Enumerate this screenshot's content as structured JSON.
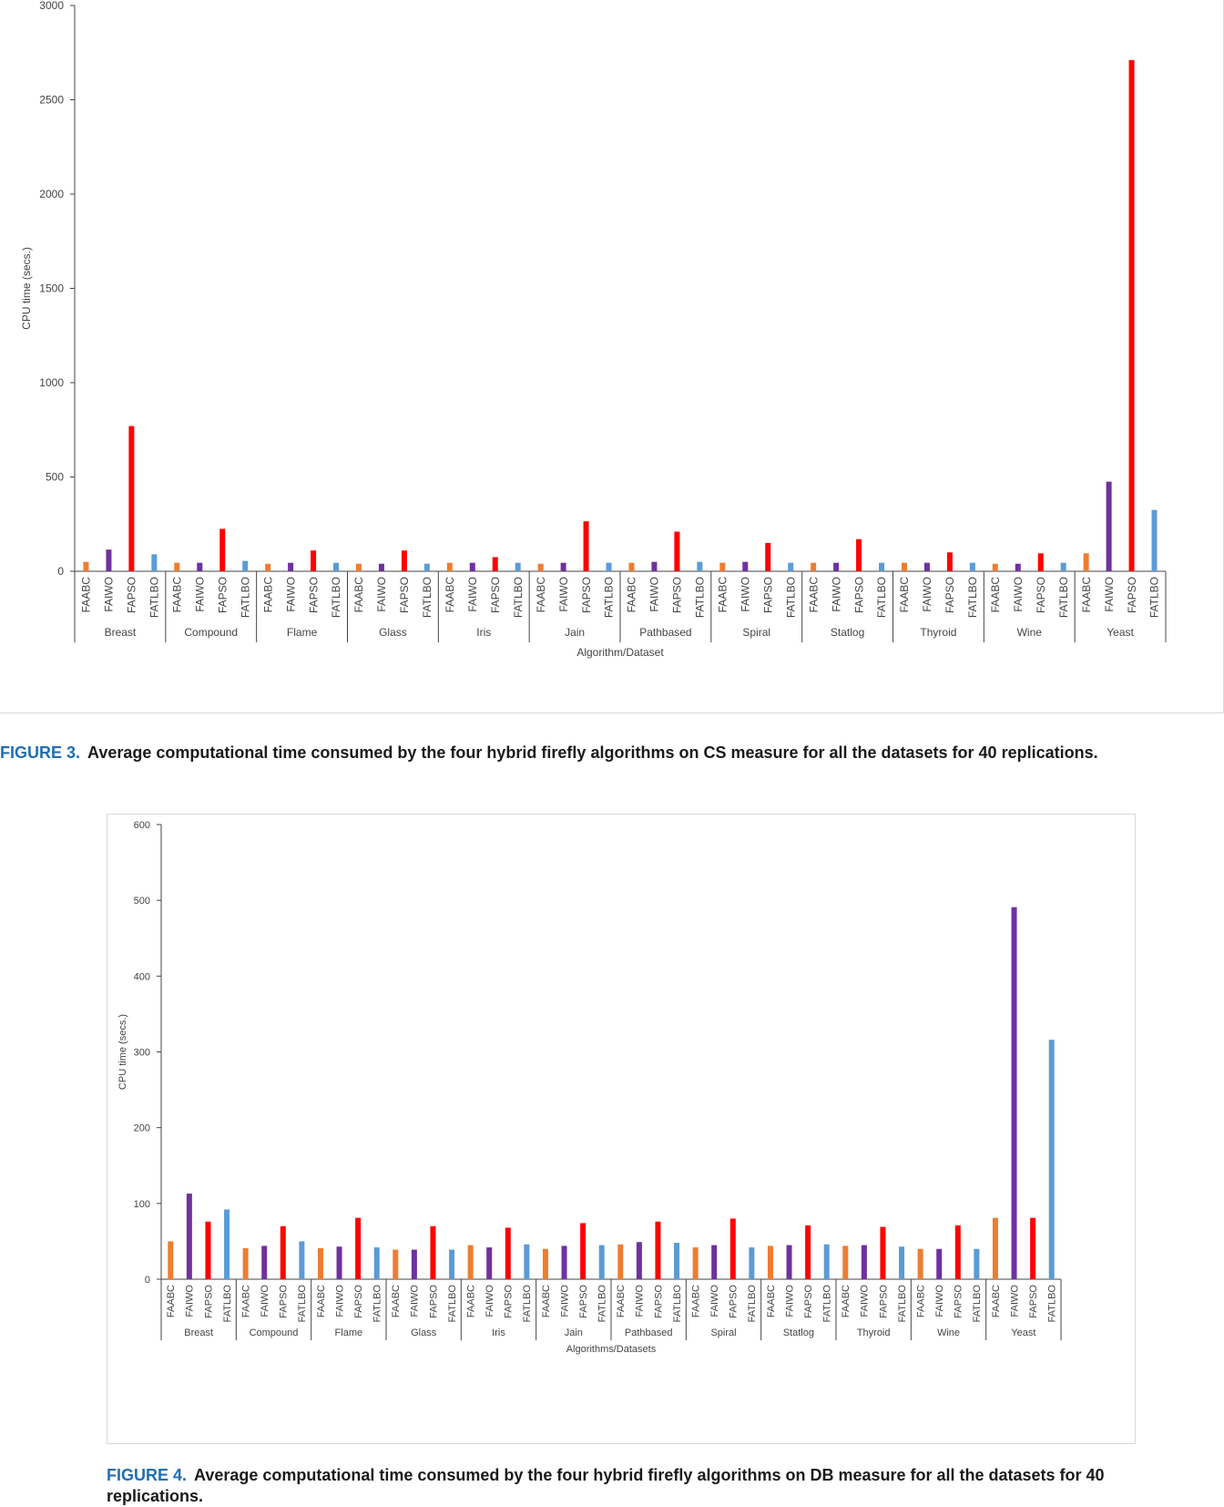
{
  "figures": [
    {
      "caption_label": "FIGURE 3.",
      "caption_text": "Average computational time consumed by the four hybrid firefly algorithms on CS measure for all the datasets for 40 replications."
    },
    {
      "caption_label": "FIGURE 4.",
      "caption_text": "Average computational time consumed by the four hybrid firefly algorithms on DB measure for all the datasets for 40 replications."
    }
  ],
  "colors": {
    "FAABC": "#ed7d31",
    "FAIWO": "#7030a0",
    "FAPSO": "#ff0000",
    "FATLBO": "#5b9bd5",
    "axis": "#444444",
    "caption_label": "#1f6fb4"
  },
  "chart_data": [
    {
      "type": "bar",
      "ylabel": "CPU time (secs.)",
      "xlabel": "Algorithm/Dataset",
      "ylim": [
        0,
        3000
      ],
      "yticks": [
        0,
        500,
        1000,
        1500,
        2000,
        2500,
        3000
      ],
      "grid": false,
      "algorithms": [
        "FAABC",
        "FAIWO",
        "FAPSO",
        "FATLBO"
      ],
      "datasets": [
        "Breast",
        "Compound",
        "Flame",
        "Glass",
        "Iris",
        "Jain",
        "Pathbased",
        "Spiral",
        "Statlog",
        "Thyroid",
        "Wine",
        "Yeast"
      ],
      "series": [
        {
          "name": "FAABC",
          "values": [
            50,
            45,
            40,
            40,
            45,
            40,
            45,
            45,
            45,
            45,
            40,
            95
          ]
        },
        {
          "name": "FAIWO",
          "values": [
            115,
            45,
            45,
            40,
            45,
            45,
            50,
            50,
            45,
            45,
            40,
            475
          ]
        },
        {
          "name": "FAPSO",
          "values": [
            770,
            225,
            110,
            110,
            75,
            265,
            210,
            150,
            170,
            100,
            95,
            2710
          ]
        },
        {
          "name": "FATLBO",
          "values": [
            90,
            55,
            45,
            40,
            45,
            45,
            50,
            45,
            45,
            45,
            45,
            325
          ]
        }
      ]
    },
    {
      "type": "bar",
      "ylabel": "CPU time (secs.)",
      "xlabel": "Algorithms/Datasets",
      "ylim": [
        0,
        600
      ],
      "yticks": [
        0,
        100,
        200,
        300,
        400,
        500,
        600
      ],
      "grid": false,
      "algorithms": [
        "FAABC",
        "FAIWO",
        "FAPSO",
        "FATLBO"
      ],
      "datasets": [
        "Breast",
        "Compound",
        "Flame",
        "Glass",
        "Iris",
        "Jain",
        "Pathbased",
        "Spiral",
        "Statlog",
        "Thyroid",
        "Wine",
        "Yeast"
      ],
      "series": [
        {
          "name": "FAABC",
          "values": [
            50,
            41,
            41,
            39,
            45,
            40,
            46,
            42,
            44,
            44,
            40,
            81
          ]
        },
        {
          "name": "FAIWO",
          "values": [
            113,
            44,
            43,
            39,
            42,
            44,
            49,
            45,
            45,
            45,
            40,
            491
          ]
        },
        {
          "name": "FAPSO",
          "values": [
            76,
            70,
            81,
            70,
            68,
            74,
            76,
            80,
            71,
            69,
            71,
            81
          ]
        },
        {
          "name": "FATLBO",
          "values": [
            92,
            50,
            42,
            39,
            46,
            45,
            48,
            42,
            46,
            43,
            40,
            316
          ]
        }
      ]
    }
  ]
}
